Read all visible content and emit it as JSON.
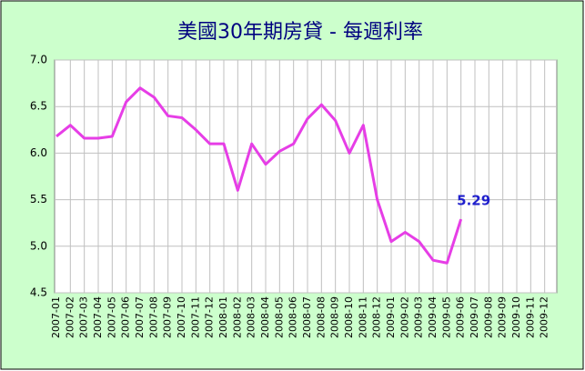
{
  "chart_data": {
    "type": "line",
    "title": "美國30年期房貸 - 每週利率",
    "categories": [
      "2007-01",
      "2007-02",
      "2007-03",
      "2007-04",
      "2007-05",
      "2007-06",
      "2007-07",
      "2007-08",
      "2007-09",
      "2007-10",
      "2007-11",
      "2007-12",
      "2008-01",
      "2008-02",
      "2008-03",
      "2008-04",
      "2008-05",
      "2008-06",
      "2008-07",
      "2008-08",
      "2008-09",
      "2008-10",
      "2008-11",
      "2008-12",
      "2009-01",
      "2009-02",
      "2009-03",
      "2009-04",
      "2009-05",
      "2009-06",
      "2009-07",
      "2009-08",
      "2009-09",
      "2009-10",
      "2009-11",
      "2009-12"
    ],
    "series": [
      {
        "color": "#e63ee6",
        "values": [
          6.18,
          6.3,
          6.16,
          6.16,
          6.18,
          6.55,
          6.7,
          6.6,
          6.4,
          6.38,
          6.25,
          6.1,
          6.1,
          5.6,
          6.1,
          5.88,
          6.02,
          6.1,
          6.37,
          6.52,
          6.35,
          6.0,
          6.3,
          5.5,
          5.05,
          5.15,
          5.05,
          4.85,
          4.82,
          5.29,
          null,
          null,
          null,
          null,
          null,
          null
        ],
        "value_labels": [
          null,
          null,
          null,
          null,
          null,
          null,
          null,
          null,
          null,
          null,
          null,
          null,
          null,
          null,
          null,
          null,
          null,
          null,
          null,
          null,
          null,
          null,
          null,
          null,
          null,
          null,
          null,
          null,
          null,
          "5.29",
          null,
          null,
          null,
          null,
          null,
          null
        ]
      }
    ],
    "ylim": [
      4.5,
      7.0
    ],
    "yticks": [
      {
        "value": 4.5,
        "label": "4.5"
      },
      {
        "value": 5,
        "label": "5.0"
      },
      {
        "value": 5.5,
        "label": "5.5"
      },
      {
        "value": 6,
        "label": "6.0"
      },
      {
        "value": 6.5,
        "label": "6.5"
      },
      {
        "value": 7,
        "label": "7.0"
      }
    ],
    "grid": true
  }
}
